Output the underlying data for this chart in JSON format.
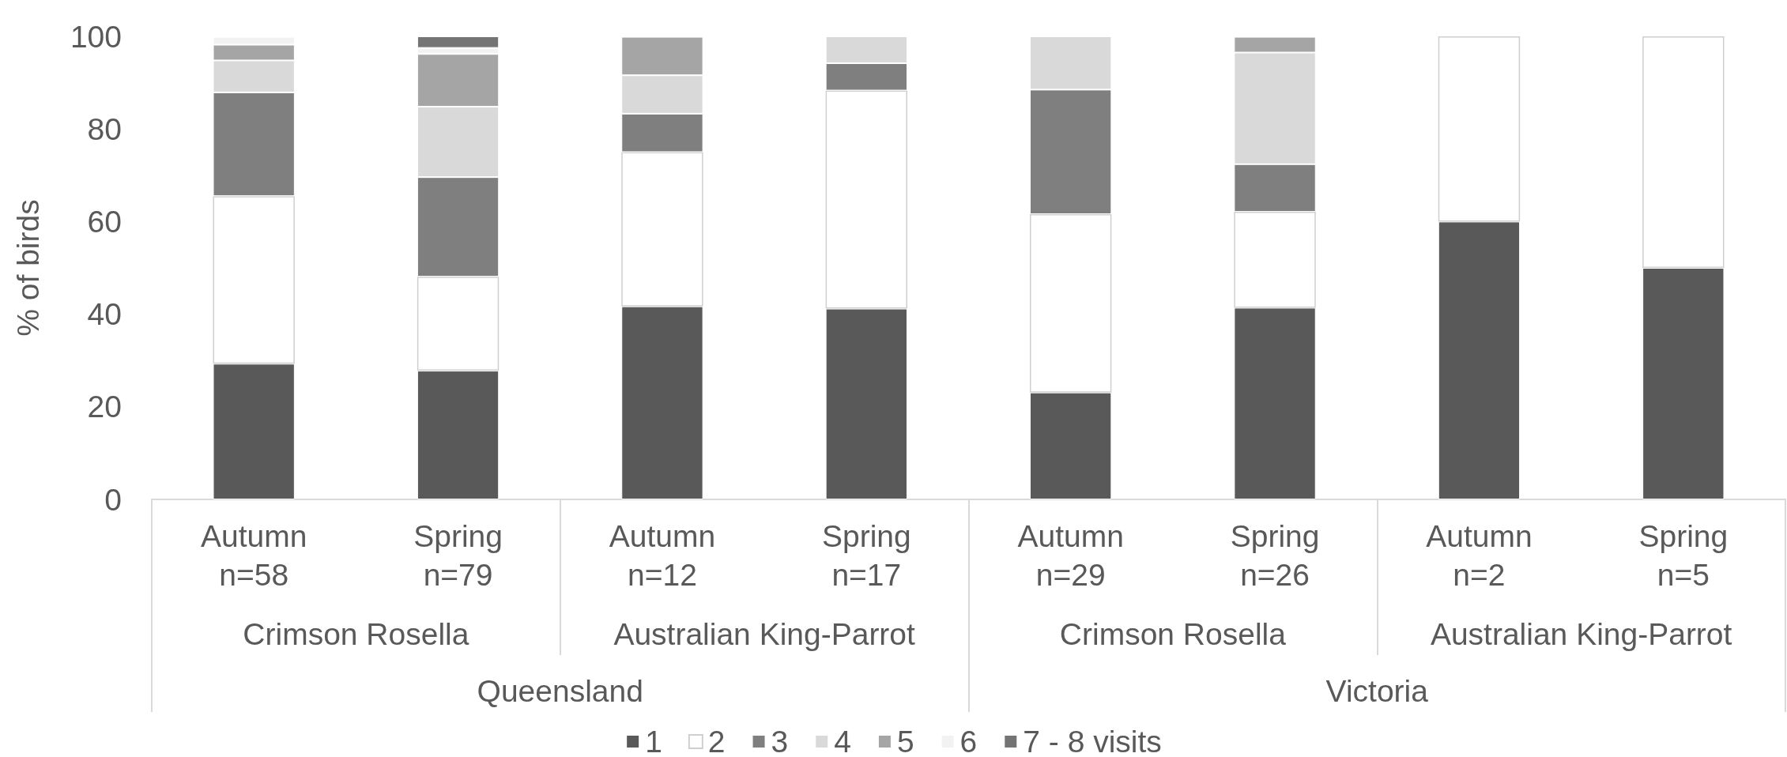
{
  "chart_data": {
    "type": "bar",
    "stacked": true,
    "ylabel": "% of birds",
    "categories": [
      "Autumn\nn=58",
      "Spring\nn=79",
      "Autumn\nn=12",
      "Spring\nn=17",
      "Autumn\nn=29",
      "Spring\nn=26",
      "Autumn\nn=2",
      "Spring\nn=5"
    ],
    "annotations": [
      "Crimson Rosella",
      "Australian King-Parrot",
      "Crimson Rosella",
      "Australian King-Parrot",
      "Queensland",
      "Victoria"
    ],
    "series": [
      {
        "name": "1",
        "color": "#595959",
        "values": [
          29.3,
          27.8,
          41.7,
          41.2,
          23.1,
          41.4,
          60,
          50
        ]
      },
      {
        "name": "2",
        "color": "#ffffff",
        "values": [
          36.2,
          20.3,
          33.3,
          47.1,
          38.5,
          20.7,
          40,
          50
        ]
      },
      {
        "name": "3",
        "color": "#7f7f7f",
        "values": [
          22.4,
          21.5,
          8.3,
          5.9,
          26.9,
          10.3,
          null,
          null
        ]
      },
      {
        "name": "4",
        "color": "#d9d9d9",
        "values": [
          6.9,
          15.2,
          8.3,
          5.8,
          11.5,
          24.1,
          null,
          null
        ]
      },
      {
        "name": "5",
        "color": "#a5a5a5",
        "values": [
          3.4,
          11.4,
          8.3,
          null,
          null,
          3.4,
          null,
          null
        ]
      },
      {
        "name": "6",
        "color": "#f2f2f2",
        "values": [
          1.7,
          1.3,
          null,
          null,
          null,
          null,
          null,
          null
        ]
      },
      {
        "name": "7 - 8 visits",
        "color": "#747474",
        "values": [
          null,
          2.5,
          null,
          null,
          null,
          null,
          null,
          null
        ]
      }
    ],
    "ylim": [
      0,
      100
    ],
    "yticks": [
      0,
      20,
      40,
      60,
      80,
      100
    ],
    "grid": false,
    "legend": "bottom"
  }
}
